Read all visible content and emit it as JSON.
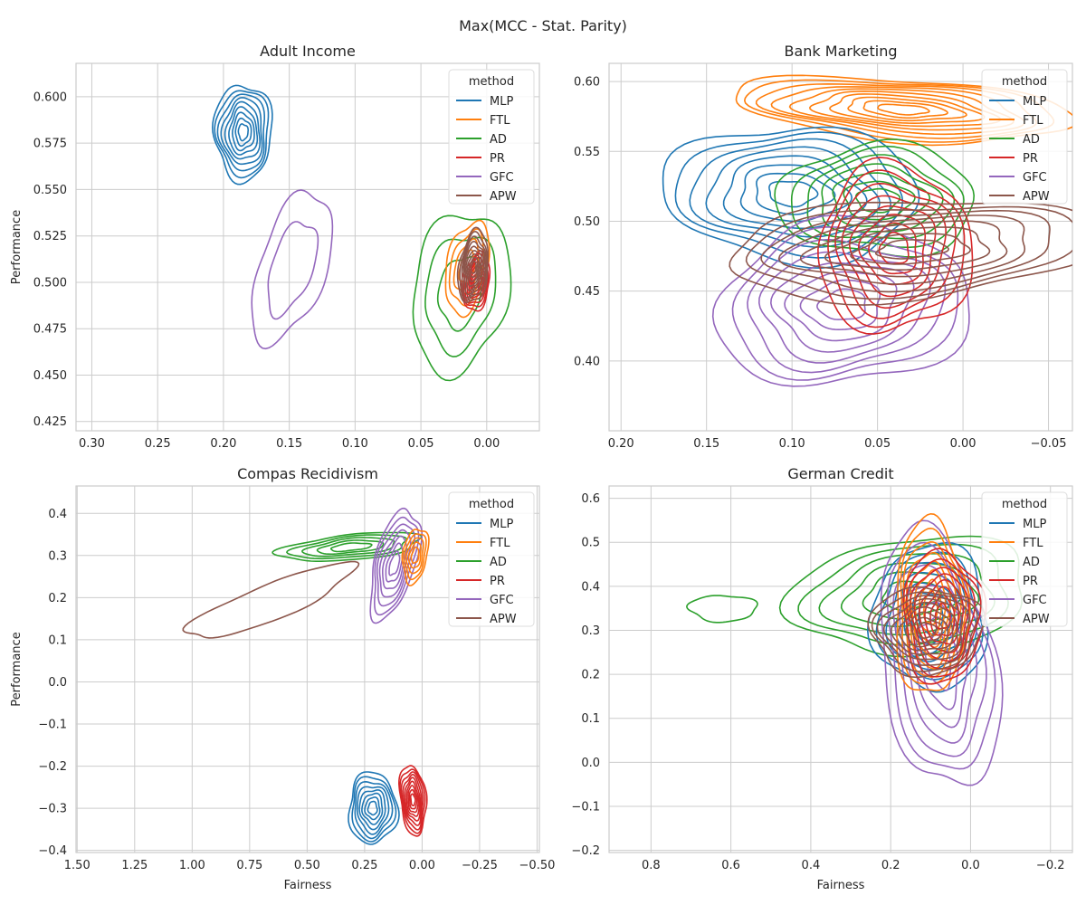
{
  "figure": {
    "suptitle": "Max(MCC - Stat. Parity)"
  },
  "legend": {
    "title": "method",
    "entries": [
      {
        "name": "MLP",
        "color": "#1f77b4"
      },
      {
        "name": "FTL",
        "color": "#ff7f0e"
      },
      {
        "name": "AD",
        "color": "#2ca02c"
      },
      {
        "name": "PR",
        "color": "#d62728"
      },
      {
        "name": "GFC",
        "color": "#9467bd"
      },
      {
        "name": "APW",
        "color": "#8c564b"
      }
    ],
    "placement": "top-right"
  },
  "chart_data": [
    {
      "type": "kde-contour",
      "title": "Adult Income",
      "xlabel": "",
      "ylabel": "Performance",
      "x_inverted": true,
      "xlim": [
        0.312,
        -0.04
      ],
      "ylim": [
        0.42,
        0.618
      ],
      "xticks": [
        0.3,
        0.25,
        0.2,
        0.15,
        0.1,
        0.05,
        0.0
      ],
      "xtick_labels": [
        "0.30",
        "0.25",
        "0.20",
        "0.15",
        "0.10",
        "0.05",
        "0.00"
      ],
      "yticks": [
        0.425,
        0.45,
        0.475,
        0.5,
        0.525,
        0.55,
        0.575,
        0.6
      ],
      "ytick_labels": [
        "0.425",
        "0.450",
        "0.475",
        "0.500",
        "0.525",
        "0.550",
        "0.575",
        "0.600"
      ],
      "grid": true,
      "series": [
        {
          "name": "MLP",
          "cx": 0.185,
          "cy": 0.581,
          "rx": 0.022,
          "ry": 0.026,
          "rot": 0,
          "levels": 9
        },
        {
          "name": "GFC",
          "cx": 0.148,
          "cy": 0.508,
          "rx": 0.045,
          "ry": 0.024,
          "rot": -60,
          "levels": 2
        },
        {
          "name": "AD",
          "cx": 0.02,
          "cy": 0.495,
          "rx": 0.045,
          "ry": 0.035,
          "rot": -65,
          "levels": 3
        },
        {
          "name": "FTL",
          "cx": 0.015,
          "cy": 0.508,
          "rx": 0.026,
          "ry": 0.015,
          "rot": -70,
          "levels": 4
        },
        {
          "name": "PR",
          "cx": 0.008,
          "cy": 0.5,
          "rx": 0.016,
          "ry": 0.01,
          "rot": -75,
          "levels": 8
        },
        {
          "name": "APW",
          "cx": 0.01,
          "cy": 0.508,
          "rx": 0.02,
          "ry": 0.011,
          "rot": -78,
          "levels": 9
        }
      ]
    },
    {
      "type": "kde-contour",
      "title": "Bank Marketing",
      "xlabel": "",
      "ylabel": "",
      "x_inverted": true,
      "xlim": [
        0.207,
        -0.064
      ],
      "ylim": [
        0.35,
        0.613
      ],
      "xticks": [
        0.2,
        0.15,
        0.1,
        0.05,
        0.0,
        -0.05
      ],
      "xtick_labels": [
        "0.20",
        "0.15",
        "0.10",
        "0.05",
        "0.00",
        "−0.05"
      ],
      "yticks": [
        0.4,
        0.45,
        0.5,
        0.55,
        0.6
      ],
      "ytick_labels": [
        "0.40",
        "0.45",
        "0.50",
        "0.55",
        "0.60"
      ],
      "grid": true,
      "series": [
        {
          "name": "FTL",
          "cx": 0.035,
          "cy": 0.58,
          "rx": 0.1,
          "ry": 0.022,
          "rot": 5,
          "levels": 10
        },
        {
          "name": "MLP",
          "cx": 0.1,
          "cy": 0.52,
          "rx": 0.075,
          "ry": 0.048,
          "rot": 5,
          "levels": 8
        },
        {
          "name": "AD",
          "cx": 0.05,
          "cy": 0.515,
          "rx": 0.058,
          "ry": 0.04,
          "rot": 0,
          "levels": 7
        },
        {
          "name": "GFC",
          "cx": 0.07,
          "cy": 0.44,
          "rx": 0.075,
          "ry": 0.058,
          "rot": -10,
          "levels": 8
        },
        {
          "name": "PR",
          "cx": 0.04,
          "cy": 0.48,
          "rx": 0.045,
          "ry": 0.06,
          "rot": 0,
          "levels": 8
        },
        {
          "name": "APW",
          "cx": 0.03,
          "cy": 0.48,
          "rx": 0.11,
          "ry": 0.035,
          "rot": -5,
          "levels": 8
        }
      ]
    },
    {
      "type": "kde-contour",
      "title": "Compas Recidivism",
      "xlabel": "Fairness",
      "ylabel": "Performance",
      "x_inverted": true,
      "xlim": [
        1.505,
        -0.51
      ],
      "ylim": [
        -0.405,
        0.465
      ],
      "xticks": [
        1.5,
        1.25,
        1.0,
        0.75,
        0.5,
        0.25,
        0.0,
        -0.25,
        -0.5
      ],
      "xtick_labels": [
        "1.50",
        "1.25",
        "1.00",
        "0.75",
        "0.50",
        "0.25",
        "0.00",
        "−0.25",
        "−0.50"
      ],
      "yticks": [
        -0.4,
        -0.3,
        -0.2,
        -0.1,
        0.0,
        0.1,
        0.2,
        0.3,
        0.4
      ],
      "ytick_labels": [
        "−0.4",
        "−0.3",
        "−0.2",
        "−0.1",
        "0.0",
        "0.1",
        "0.2",
        "0.3",
        "0.4"
      ],
      "grid": true,
      "series": [
        {
          "name": "APW",
          "cx": 0.66,
          "cy": 0.19,
          "rx": 0.37,
          "ry": 0.045,
          "rot": -12,
          "levels": 1
        },
        {
          "name": "AD",
          "cx": 0.31,
          "cy": 0.32,
          "rx": 0.31,
          "ry": 0.03,
          "rot": -3,
          "levels": 5
        },
        {
          "name": "GFC",
          "cx": 0.12,
          "cy": 0.28,
          "rx": 0.15,
          "ry": 0.08,
          "rot": -55,
          "levels": 7
        },
        {
          "name": "FTL",
          "cx": 0.03,
          "cy": 0.3,
          "rx": 0.07,
          "ry": 0.05,
          "rot": -60,
          "levels": 5
        },
        {
          "name": "MLP",
          "cx": 0.215,
          "cy": -0.3,
          "rx": 0.105,
          "ry": 0.085,
          "rot": 0,
          "levels": 8
        },
        {
          "name": "PR",
          "cx": 0.04,
          "cy": -0.28,
          "rx": 0.055,
          "ry": 0.085,
          "rot": -15,
          "levels": 9
        }
      ]
    },
    {
      "type": "kde-contour",
      "title": "German Credit",
      "xlabel": "Fairness",
      "ylabel": "",
      "x_inverted": true,
      "xlim": [
        0.905,
        -0.255
      ],
      "ylim": [
        -0.205,
        0.628
      ],
      "xticks": [
        0.8,
        0.6,
        0.4,
        0.2,
        0.0,
        -0.2
      ],
      "xtick_labels": [
        "0.8",
        "0.6",
        "0.4",
        "0.2",
        "0.0",
        "−0.2"
      ],
      "yticks": [
        -0.2,
        -0.1,
        0.0,
        0.1,
        0.2,
        0.3,
        0.4,
        0.5,
        0.6
      ],
      "ytick_labels": [
        "−0.2",
        "−0.1",
        "0.0",
        "0.1",
        "0.2",
        "0.3",
        "0.4",
        "0.5",
        "0.6"
      ],
      "grid": true,
      "series": [
        {
          "name": "AD",
          "cx": 0.62,
          "cy": 0.35,
          "rx": 0.085,
          "ry": 0.03,
          "rot": 0,
          "levels": 1
        },
        {
          "name": "AD",
          "cx": 0.15,
          "cy": 0.38,
          "rx": 0.3,
          "ry": 0.13,
          "rot": -5,
          "levels": 6
        },
        {
          "name": "MLP",
          "cx": 0.1,
          "cy": 0.33,
          "rx": 0.145,
          "ry": 0.165,
          "rot": 0,
          "levels": 7
        },
        {
          "name": "GFC",
          "cx": 0.08,
          "cy": 0.23,
          "rx": 0.14,
          "ry": 0.3,
          "rot": -12,
          "levels": 7
        },
        {
          "name": "FTL",
          "cx": 0.1,
          "cy": 0.35,
          "rx": 0.09,
          "ry": 0.2,
          "rot": 0,
          "levels": 8
        },
        {
          "name": "PR",
          "cx": 0.07,
          "cy": 0.33,
          "rx": 0.1,
          "ry": 0.15,
          "rot": 0,
          "levels": 8
        },
        {
          "name": "APW",
          "cx": 0.11,
          "cy": 0.3,
          "rx": 0.14,
          "ry": 0.1,
          "rot": 0,
          "levels": 9
        }
      ]
    }
  ]
}
